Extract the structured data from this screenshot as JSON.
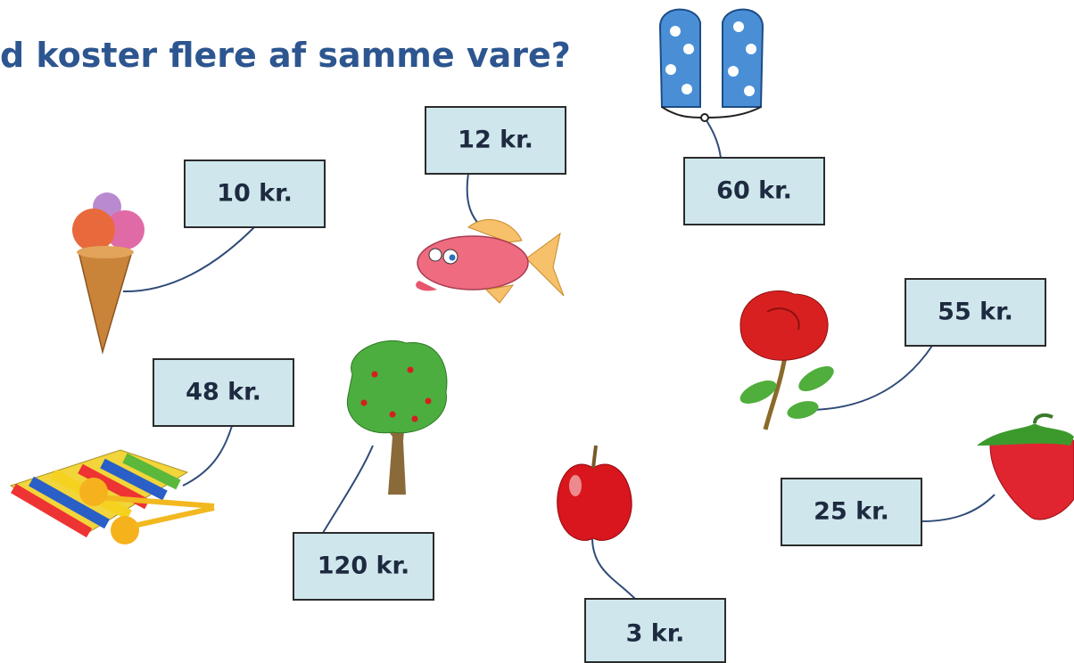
{
  "title": "d koster flere af samme vare?",
  "items": [
    {
      "price": "12 kr."
    },
    {
      "price": "10 kr."
    },
    {
      "price": "60 kr."
    },
    {
      "price": "55 kr."
    },
    {
      "price": "48 kr."
    },
    {
      "price": "120 kr."
    },
    {
      "price": "25 kr."
    },
    {
      "price": "3 kr."
    }
  ]
}
